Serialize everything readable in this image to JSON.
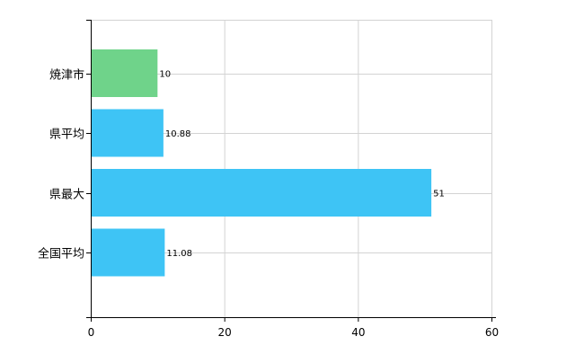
{
  "chart_data": {
    "type": "bar",
    "orientation": "horizontal",
    "categories": [
      "焼津市",
      "県平均",
      "県最大",
      "全国平均"
    ],
    "values": [
      10,
      10.88,
      51,
      11.08
    ],
    "data_labels": [
      "10",
      "10.88",
      "51",
      "11.08"
    ],
    "bar_colors": [
      "#6fd38a",
      "#3ec4f5",
      "#3ec4f5",
      "#3ec4f5"
    ],
    "xlim": [
      0,
      60
    ],
    "x_ticks": [
      0,
      20,
      40,
      60
    ],
    "x_tick_labels": [
      "0",
      "20",
      "40",
      "60"
    ],
    "grid": true,
    "legend": "none",
    "title": "",
    "xlabel": "",
    "ylabel": ""
  },
  "colors": {
    "grid": "#d3d3d3",
    "axis": "#000000",
    "highlight": "#6fd38a",
    "default_bar": "#3ec4f5"
  }
}
